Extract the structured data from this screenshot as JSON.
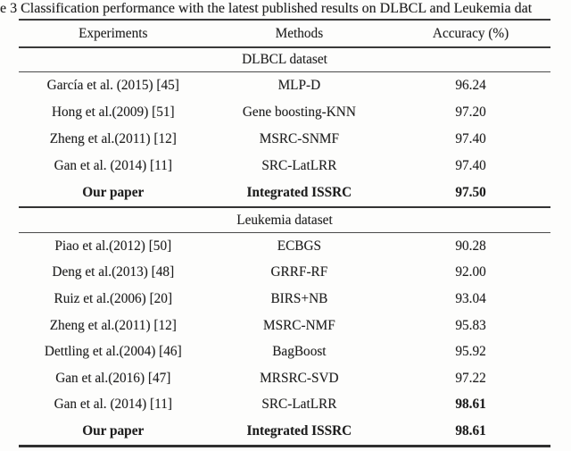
{
  "caption": "e 3 Classification performance with the latest published results on DLBCL and Leukemia dat",
  "columns": {
    "experiments": "Experiments",
    "methods": "Methods",
    "accuracy": "Accuracy (%)"
  },
  "sections": [
    {
      "title": "DLBCL dataset",
      "rows": [
        {
          "experiment": "García et al. (2015) [45]",
          "method": "MLP-D",
          "accuracy": "96.24"
        },
        {
          "experiment": "Hong et al.(2009) [51]",
          "method": "Gene boosting-KNN",
          "accuracy": "97.20"
        },
        {
          "experiment": "Zheng et al.(2011) [12]",
          "method": "MSRC-SNMF",
          "accuracy": "97.40"
        },
        {
          "experiment": "Gan et al. (2014) [11]",
          "method": "SRC-LatLRR",
          "accuracy": "97.40"
        },
        {
          "experiment": "Our paper",
          "method": "Integrated ISSRC",
          "accuracy": "97.50"
        }
      ]
    },
    {
      "title": "Leukemia dataset",
      "rows": [
        {
          "experiment": "Piao et al.(2012) [50]",
          "method": "ECBGS",
          "accuracy": "90.28"
        },
        {
          "experiment": "Deng et al.(2013) [48]",
          "method": "GRRF-RF",
          "accuracy": "92.00"
        },
        {
          "experiment": "Ruiz et al.(2006) [20]",
          "method": "BIRS+NB",
          "accuracy": "93.04"
        },
        {
          "experiment": "Zheng et al.(2011) [12]",
          "method": "MSRC-NMF",
          "accuracy": "95.83"
        },
        {
          "experiment": "Dettling et al.(2004) [46]",
          "method": "BagBoost",
          "accuracy": "95.92"
        },
        {
          "experiment": "Gan et al.(2016) [47]",
          "method": "MRSRC-SVD",
          "accuracy": "97.22"
        },
        {
          "experiment": "Gan et al. (2014) [11]",
          "method": "SRC-LatLRR",
          "accuracy": "98.61"
        },
        {
          "experiment": "Our paper",
          "method": "Integrated ISSRC",
          "accuracy": "98.61"
        }
      ]
    }
  ],
  "colors": {
    "background": "#fdfdfc",
    "text": "#1e1e1e",
    "rule_thin": "#4a4a4a",
    "rule_thick": "#303030"
  }
}
